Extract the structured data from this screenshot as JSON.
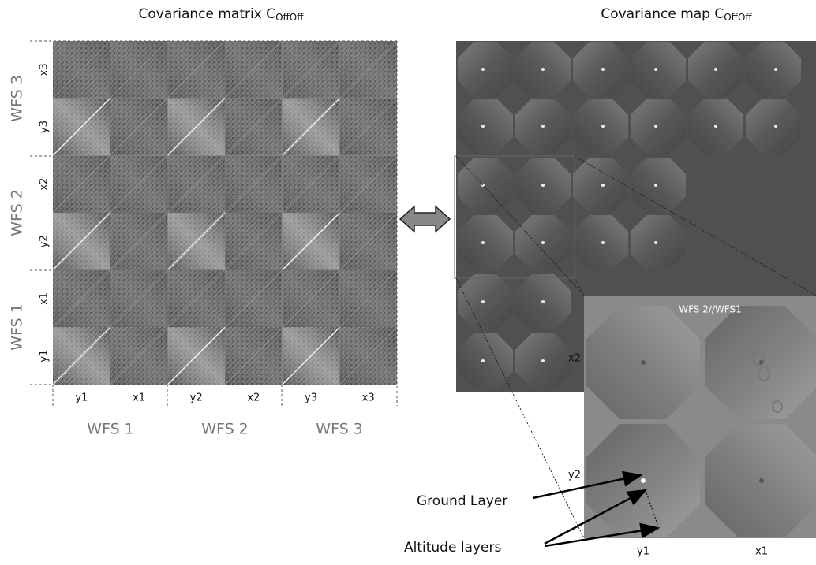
{
  "left_panel": {
    "title": "Covariance matrix C",
    "title_subscript": "OffOff",
    "row_groups": [
      "WFS 3",
      "WFS 2",
      "WFS 1"
    ],
    "row_labels": [
      "x3",
      "y3",
      "x2",
      "y2",
      "x1",
      "y1"
    ],
    "column_labels": [
      "y1",
      "x1",
      "y2",
      "x2",
      "y3",
      "x3"
    ],
    "column_groups": [
      "WFS 1",
      "WFS 2",
      "WFS 3"
    ]
  },
  "right_panel": {
    "title": "Covariance map C",
    "title_subscript": "OffOff",
    "side_label": "x2",
    "inset": {
      "title": "WFS 2//WFS1",
      "row_label": "y2",
      "column_labels": [
        "y1",
        "x1"
      ]
    },
    "annotations": [
      "Ground Layer",
      "Altitude layers"
    ]
  }
}
